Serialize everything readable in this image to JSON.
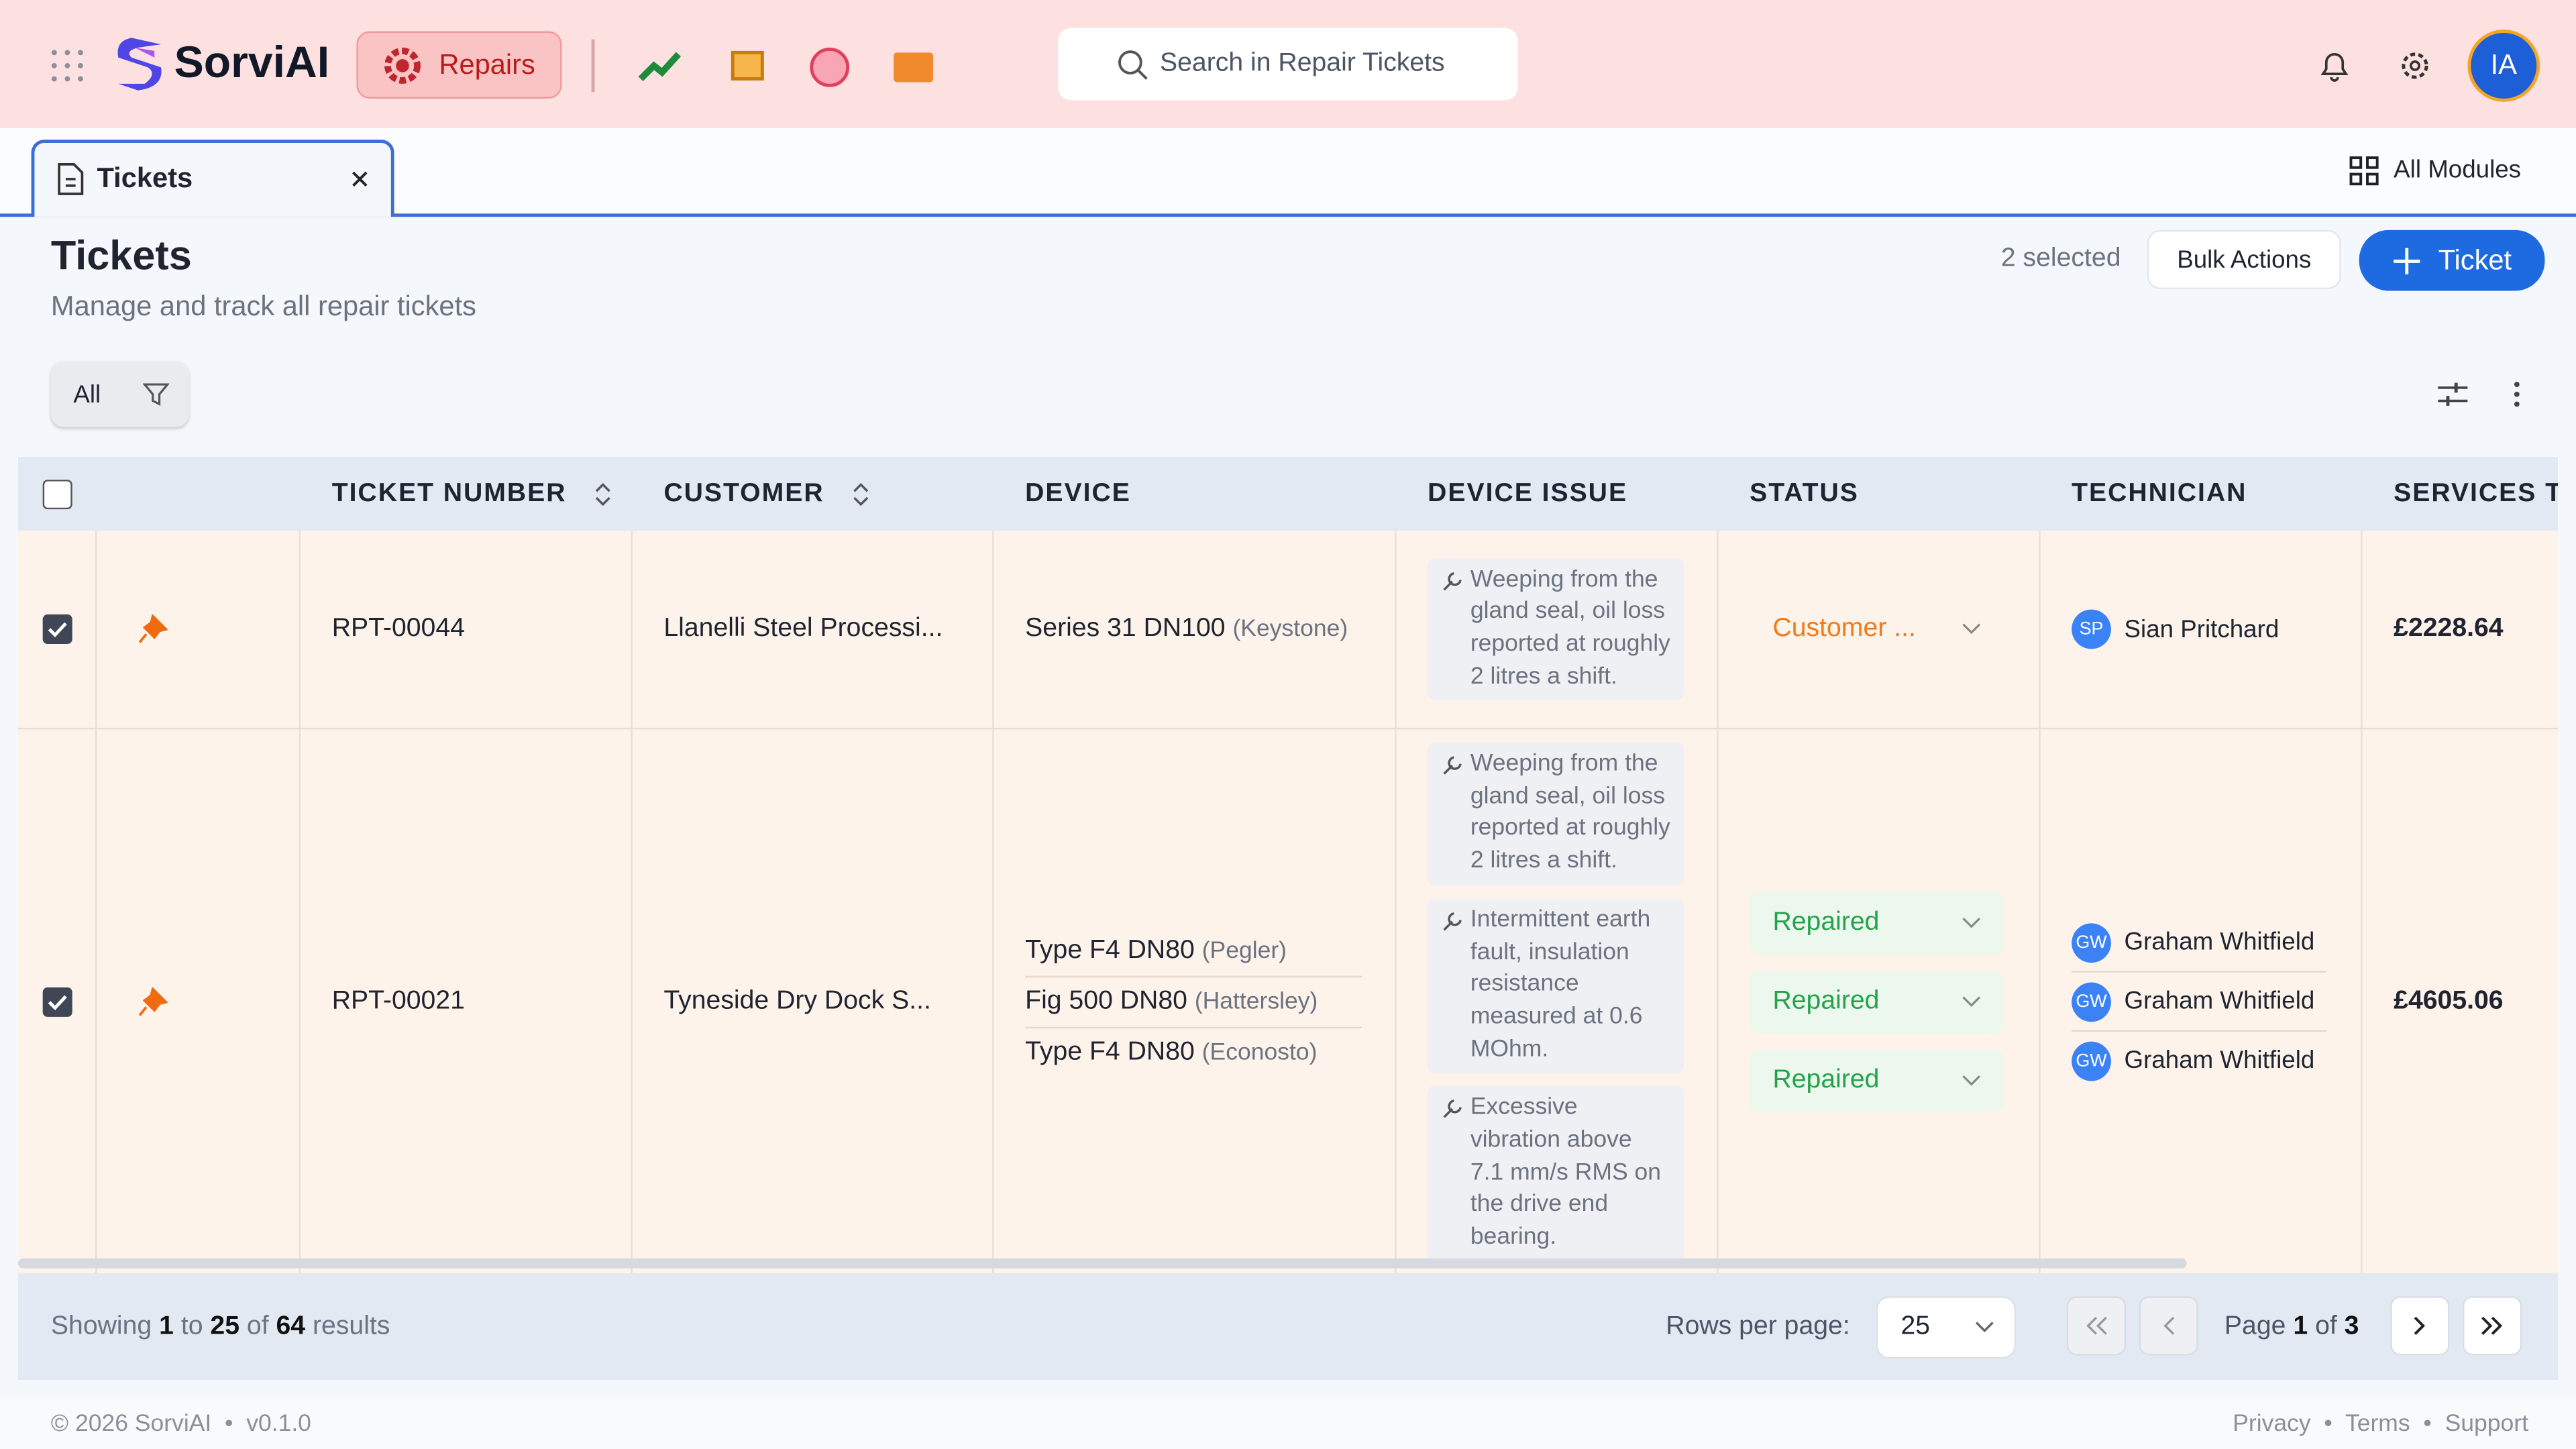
{
  "header": {
    "logo": "SorviAI",
    "module": "Repairs",
    "search": "Search in Repair Tickets",
    "avatar": "IA"
  },
  "tabs": {
    "active": "Tickets",
    "all_modules": "All Modules"
  },
  "page": {
    "title": "Tickets",
    "subtitle": "Manage and track all repair tickets",
    "selected": "2 selected",
    "bulk_actions": "Bulk Actions",
    "new_ticket": "Ticket"
  },
  "filter": {
    "all": "All"
  },
  "table": {
    "columns": [
      "TICKET NUMBER",
      "CUSTOMER",
      "DEVICE",
      "DEVICE ISSUE",
      "STATUS",
      "TECHNICIAN",
      "SERVICES TOTAL"
    ],
    "rows": [
      {
        "ticket": "RPT-00044",
        "customer": "Llanelli Steel Processi...",
        "devices": [
          {
            "name": "Series 31 DN100",
            "brand": "(Keystone)"
          }
        ],
        "issues": [
          "Weeping from the gland seal, oil loss reported at roughly 2 litres a shift."
        ],
        "statuses": [
          "Customer ..."
        ],
        "technicians": [
          {
            "initials": "SP",
            "name": "Sian Pritchard"
          }
        ],
        "total": "£2228.64"
      },
      {
        "ticket": "RPT-00021",
        "customer": "Tyneside Dry Dock S...",
        "devices": [
          {
            "name": "Type F4 DN80",
            "brand": "(Pegler)"
          },
          {
            "name": "Fig 500 DN80",
            "brand": "(Hattersley)"
          },
          {
            "name": "Type F4 DN80",
            "brand": "(Econosto)"
          }
        ],
        "issues": [
          "Weeping from the gland seal, oil loss reported at roughly 2 litres a shift.",
          "Intermittent earth fault, insulation resistance measured at 0.6 MOhm.",
          "Excessive vibration above 7.1 mm/s RMS on the drive end bearing."
        ],
        "statuses": [
          "Repaired",
          "Repaired",
          "Repaired"
        ],
        "technicians": [
          {
            "initials": "GW",
            "name": "Graham Whitfield"
          },
          {
            "initials": "GW",
            "name": "Graham Whitfield"
          },
          {
            "initials": "GW",
            "name": "Graham Whitfield"
          }
        ],
        "total": "£4605.06"
      }
    ]
  },
  "pagination": {
    "showing": "Showing",
    "from": "1",
    "to_word": "to",
    "to": "25",
    "of_word": "of",
    "total": "64",
    "results": "results",
    "rows_per_page": "Rows per page:",
    "page_size": "25",
    "page_word": "Page",
    "page": "1",
    "page_of": "of",
    "pages": "3"
  },
  "footer": {
    "copyright": "© 2026 SorviAI",
    "version": "v0.1.0",
    "links": [
      "Privacy",
      "Terms",
      "Support"
    ]
  }
}
